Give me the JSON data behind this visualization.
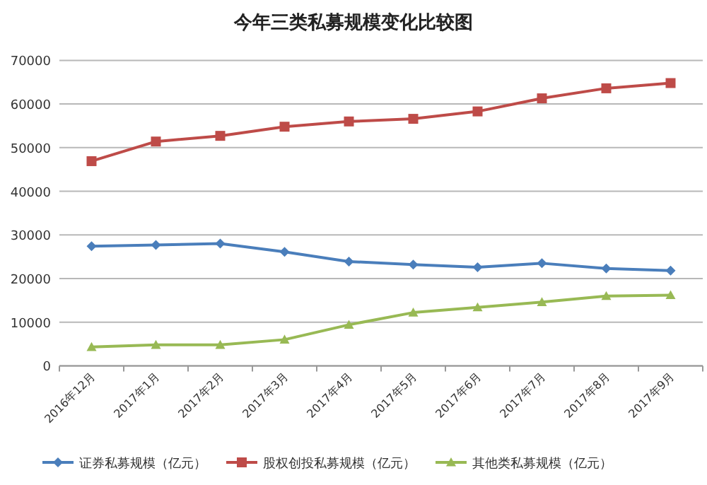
{
  "chart_data": {
    "type": "line",
    "title": "今年三类私募规模变化比较图",
    "categories": [
      "2016年12月",
      "2017年1月",
      "2017年2月",
      "2017年3月",
      "2017年4月",
      "2017年5月",
      "2017年6月",
      "2017年7月",
      "2017年8月",
      "2017年9月"
    ],
    "series": [
      {
        "name": "证券私募规模（亿元）",
        "color": "#4a7ebb",
        "marker": "diamond",
        "values": [
          27400,
          27700,
          28000,
          26100,
          23900,
          23200,
          22600,
          23500,
          22300,
          21800
        ]
      },
      {
        "name": "股权创投私募规模（亿元）",
        "color": "#be4b48",
        "marker": "square",
        "values": [
          46900,
          51400,
          52700,
          54800,
          56000,
          56600,
          58300,
          61300,
          63600,
          64800
        ]
      },
      {
        "name": "其他类私募规模（亿元）",
        "color": "#98b954",
        "marker": "triangle",
        "values": [
          4300,
          4800,
          4800,
          6000,
          9400,
          12200,
          13400,
          14600,
          16000,
          16200
        ]
      }
    ],
    "ylim": [
      0,
      70000
    ],
    "yticks": [
      0,
      10000,
      20000,
      30000,
      40000,
      50000,
      60000,
      70000
    ],
    "grid": "y",
    "legend": "bottom"
  }
}
